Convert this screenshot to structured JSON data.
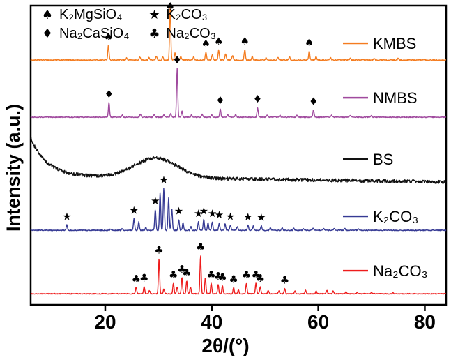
{
  "chart_data": {
    "type": "line",
    "title": "",
    "xlabel": "2θ/(°)",
    "ylabel": "Intensity (a.u.)",
    "xlim": [
      6,
      84
    ],
    "xticks": [
      20,
      40,
      60,
      80
    ],
    "grid": false,
    "legend_position": "top-left",
    "legend": [
      {
        "symbol": "♠",
        "label": "K₂MgSiO₄"
      },
      {
        "symbol": "♦",
        "label": "Na₂CaSiO₄"
      },
      {
        "symbol": "★",
        "label": "K₂CO₃"
      },
      {
        "symbol": "♣",
        "label": "Na₂CO₃"
      }
    ],
    "series": [
      {
        "name": "KMBS",
        "color": "#f47c20",
        "marker": "♠",
        "baseline": 0.182,
        "amp": 0.177,
        "label_y": 0.126,
        "noise": 0.018,
        "width": 0.16,
        "peaks": [
          [
            20.6,
            0.28
          ],
          [
            24.0,
            0.04
          ],
          [
            26.5,
            0.06
          ],
          [
            28.2,
            0.05
          ],
          [
            29.6,
            0.07
          ],
          [
            30.8,
            0.06
          ],
          [
            32.2,
            1.0
          ],
          [
            33.1,
            0.14
          ],
          [
            34.2,
            0.07
          ],
          [
            36.6,
            0.06
          ],
          [
            38.9,
            0.15
          ],
          [
            40.1,
            0.1
          ],
          [
            41.3,
            0.19
          ],
          [
            42.6,
            0.12
          ],
          [
            43.9,
            0.09
          ],
          [
            46.2,
            0.2
          ],
          [
            47.6,
            0.07
          ],
          [
            50.2,
            0.05
          ],
          [
            52.4,
            0.05
          ],
          [
            54.6,
            0.06
          ],
          [
            58.3,
            0.17
          ],
          [
            59.6,
            0.07
          ],
          [
            62.3,
            0.05
          ],
          [
            66.0,
            0.04
          ],
          [
            70.5,
            0.03
          ],
          [
            75.0,
            0.03
          ]
        ],
        "marked": [
          20.6,
          32.2,
          38.9,
          41.3,
          46.2,
          58.3
        ]
      },
      {
        "name": "NMBS",
        "color": "#a04a9e",
        "marker": "♦",
        "baseline": 0.373,
        "amp": 0.163,
        "label_y": 0.308,
        "noise": 0.018,
        "width": 0.16,
        "peaks": [
          [
            20.7,
            0.3
          ],
          [
            23.2,
            0.05
          ],
          [
            26.6,
            0.07
          ],
          [
            29.2,
            0.06
          ],
          [
            31.0,
            0.05
          ],
          [
            32.3,
            0.08
          ],
          [
            33.5,
            1.0
          ],
          [
            34.4,
            0.12
          ],
          [
            36.2,
            0.05
          ],
          [
            38.2,
            0.06
          ],
          [
            40.0,
            0.05
          ],
          [
            41.6,
            0.17
          ],
          [
            43.0,
            0.05
          ],
          [
            44.5,
            0.05
          ],
          [
            48.6,
            0.2
          ],
          [
            50.4,
            0.05
          ],
          [
            52.8,
            0.04
          ],
          [
            56.0,
            0.04
          ],
          [
            59.1,
            0.15
          ],
          [
            62.5,
            0.04
          ],
          [
            66.0,
            0.04
          ],
          [
            70.0,
            0.03
          ]
        ],
        "marked": [
          20.7,
          33.5,
          41.6,
          48.6,
          59.1
        ]
      },
      {
        "name": "BS",
        "color": "#121212",
        "marker": "",
        "baseline": 0.569,
        "amp": 0.205,
        "label_y": 0.513,
        "noise": 0.055,
        "width": 0.16,
        "drift": -0.1,
        "amorphous": {
          "decay_h": 0.62,
          "decay_w": 3.0,
          "hump_c": 29.5,
          "hump_w": 4.0,
          "hump_h": 0.32
        },
        "peaks": [],
        "marked": []
      },
      {
        "name": "K₂CO₃",
        "color": "#363a94",
        "marker": "★",
        "baseline": 0.751,
        "amp": 0.14,
        "label_y": 0.704,
        "noise": 0.022,
        "width": 0.16,
        "peaks": [
          [
            12.8,
            0.13
          ],
          [
            21.0,
            0.03
          ],
          [
            23.2,
            0.04
          ],
          [
            25.4,
            0.28
          ],
          [
            26.3,
            0.2
          ],
          [
            27.6,
            0.07
          ],
          [
            29.4,
            0.5
          ],
          [
            30.3,
            0.9
          ],
          [
            31.0,
            1.0
          ],
          [
            31.9,
            0.78
          ],
          [
            32.5,
            0.52
          ],
          [
            33.8,
            0.26
          ],
          [
            34.6,
            0.18
          ],
          [
            36.1,
            0.09
          ],
          [
            37.5,
            0.2
          ],
          [
            38.5,
            0.26
          ],
          [
            39.3,
            0.18
          ],
          [
            40.1,
            0.2
          ],
          [
            41.4,
            0.17
          ],
          [
            42.5,
            0.15
          ],
          [
            43.5,
            0.13
          ],
          [
            44.8,
            0.09
          ],
          [
            46.8,
            0.12
          ],
          [
            47.8,
            0.1
          ],
          [
            49.3,
            0.11
          ],
          [
            51.0,
            0.07
          ],
          [
            53.2,
            0.06
          ],
          [
            55.4,
            0.05
          ],
          [
            57.2,
            0.05
          ],
          [
            59.0,
            0.05
          ],
          [
            61.0,
            0.05
          ],
          [
            63.0,
            0.04
          ],
          [
            65.0,
            0.04
          ],
          [
            67.5,
            0.03
          ]
        ],
        "marked": [
          12.8,
          25.4,
          29.4,
          31.0,
          33.8,
          37.5,
          38.5,
          40.1,
          41.4,
          43.5,
          46.8,
          49.3
        ]
      },
      {
        "name": "Na₂CO₃",
        "color": "#ee1c1c",
        "marker": "♣",
        "baseline": 0.963,
        "amp": 0.128,
        "label_y": 0.886,
        "noise": 0.02,
        "width": 0.16,
        "peaks": [
          [
            25.8,
            0.17
          ],
          [
            27.3,
            0.19
          ],
          [
            28.3,
            0.08
          ],
          [
            30.1,
            0.92
          ],
          [
            31.0,
            0.12
          ],
          [
            32.8,
            0.28
          ],
          [
            33.5,
            0.18
          ],
          [
            34.4,
            0.42
          ],
          [
            35.3,
            0.33
          ],
          [
            36.0,
            0.18
          ],
          [
            37.9,
            1.0
          ],
          [
            38.8,
            0.42
          ],
          [
            39.9,
            0.28
          ],
          [
            41.2,
            0.24
          ],
          [
            42.0,
            0.21
          ],
          [
            44.1,
            0.16
          ],
          [
            45.0,
            0.1
          ],
          [
            46.5,
            0.28
          ],
          [
            48.3,
            0.28
          ],
          [
            49.1,
            0.18
          ],
          [
            50.6,
            0.09
          ],
          [
            52.6,
            0.07
          ],
          [
            53.7,
            0.14
          ],
          [
            55.6,
            0.07
          ],
          [
            57.6,
            0.09
          ],
          [
            59.6,
            0.07
          ],
          [
            61.6,
            0.09
          ],
          [
            62.8,
            0.07
          ],
          [
            65.2,
            0.05
          ],
          [
            67.3,
            0.04
          ],
          [
            70.0,
            0.03
          ],
          [
            74.0,
            0.03
          ]
        ],
        "marked": [
          25.8,
          27.3,
          30.1,
          32.8,
          34.4,
          35.3,
          37.9,
          39.9,
          41.2,
          42.0,
          44.1,
          46.5,
          48.3,
          49.1,
          53.7
        ]
      }
    ]
  }
}
